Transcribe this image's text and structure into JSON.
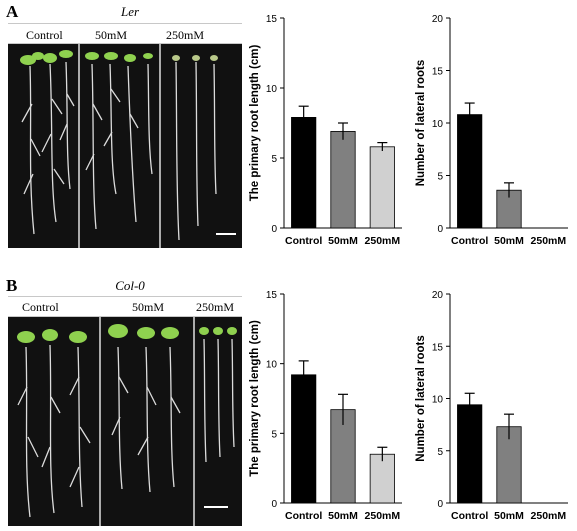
{
  "panel_a": {
    "letter": "A",
    "genotype": "Ler",
    "conditions": [
      "Control",
      "50mM",
      "250mM"
    ]
  },
  "panel_b": {
    "letter": "B",
    "genotype": "Col-0",
    "conditions": [
      "Control",
      "50mM",
      "250mM"
    ]
  },
  "colors": {
    "control": "#000000",
    "mm50": "#808080",
    "mm250": "#d0d0d0",
    "photo_bg": "#111111",
    "leaf": "#8fd14f"
  },
  "chart_data": [
    {
      "type": "bar",
      "panel": "A",
      "categories": [
        "Control",
        "50mM",
        "250mM"
      ],
      "values": [
        7.9,
        6.9,
        5.8
      ],
      "errors": [
        0.8,
        0.6,
        0.3
      ],
      "ylabel": "The primary root length (cm)",
      "ylim": [
        0,
        15
      ],
      "yticks": [
        0,
        5,
        10,
        15
      ]
    },
    {
      "type": "bar",
      "panel": "A",
      "categories": [
        "Control",
        "50mM",
        "250mM"
      ],
      "values": [
        10.8,
        3.6,
        0
      ],
      "errors": [
        1.1,
        0.7,
        0
      ],
      "ylabel": "Number of lateral roots",
      "ylim": [
        0,
        20
      ],
      "yticks": [
        0,
        5,
        10,
        15,
        20
      ]
    },
    {
      "type": "bar",
      "panel": "B",
      "categories": [
        "Control",
        "50mM",
        "250mM"
      ],
      "values": [
        9.2,
        6.7,
        3.5
      ],
      "errors": [
        1.0,
        1.1,
        0.5
      ],
      "ylabel": "The primary root length (cm)",
      "ylim": [
        0,
        15
      ],
      "yticks": [
        0,
        5,
        10,
        15
      ]
    },
    {
      "type": "bar",
      "panel": "B",
      "categories": [
        "Control",
        "50mM",
        "250mM"
      ],
      "values": [
        9.4,
        7.3,
        0
      ],
      "errors": [
        1.1,
        1.2,
        0
      ],
      "ylabel": "Number of lateral roots",
      "ylim": [
        0,
        20
      ],
      "yticks": [
        0,
        5,
        10,
        15,
        20
      ]
    }
  ]
}
